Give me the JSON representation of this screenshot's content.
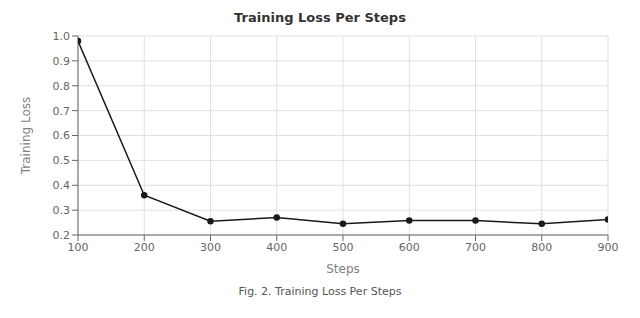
{
  "chart_data": {
    "type": "line",
    "title": "Training Loss Per Steps",
    "xlabel": "Steps",
    "ylabel": "Training Loss",
    "caption": "Fig. 2. Training Loss Per Steps",
    "x": [
      100,
      200,
      300,
      400,
      500,
      600,
      700,
      800,
      900
    ],
    "values": [
      0.98,
      0.36,
      0.255,
      0.27,
      0.245,
      0.258,
      0.258,
      0.245,
      0.262
    ],
    "xlim": [
      100,
      900
    ],
    "ylim": [
      0.2,
      1.0
    ],
    "xticks": [
      100,
      200,
      300,
      400,
      500,
      600,
      700,
      800,
      900
    ],
    "yticks": [
      0.2,
      0.3,
      0.4,
      0.5,
      0.6,
      0.7,
      0.8,
      0.9,
      {
        "value": 1.0,
        "label": "1.0"
      }
    ],
    "color": "#1a1a1a",
    "marker": "circle",
    "grid": true
  }
}
